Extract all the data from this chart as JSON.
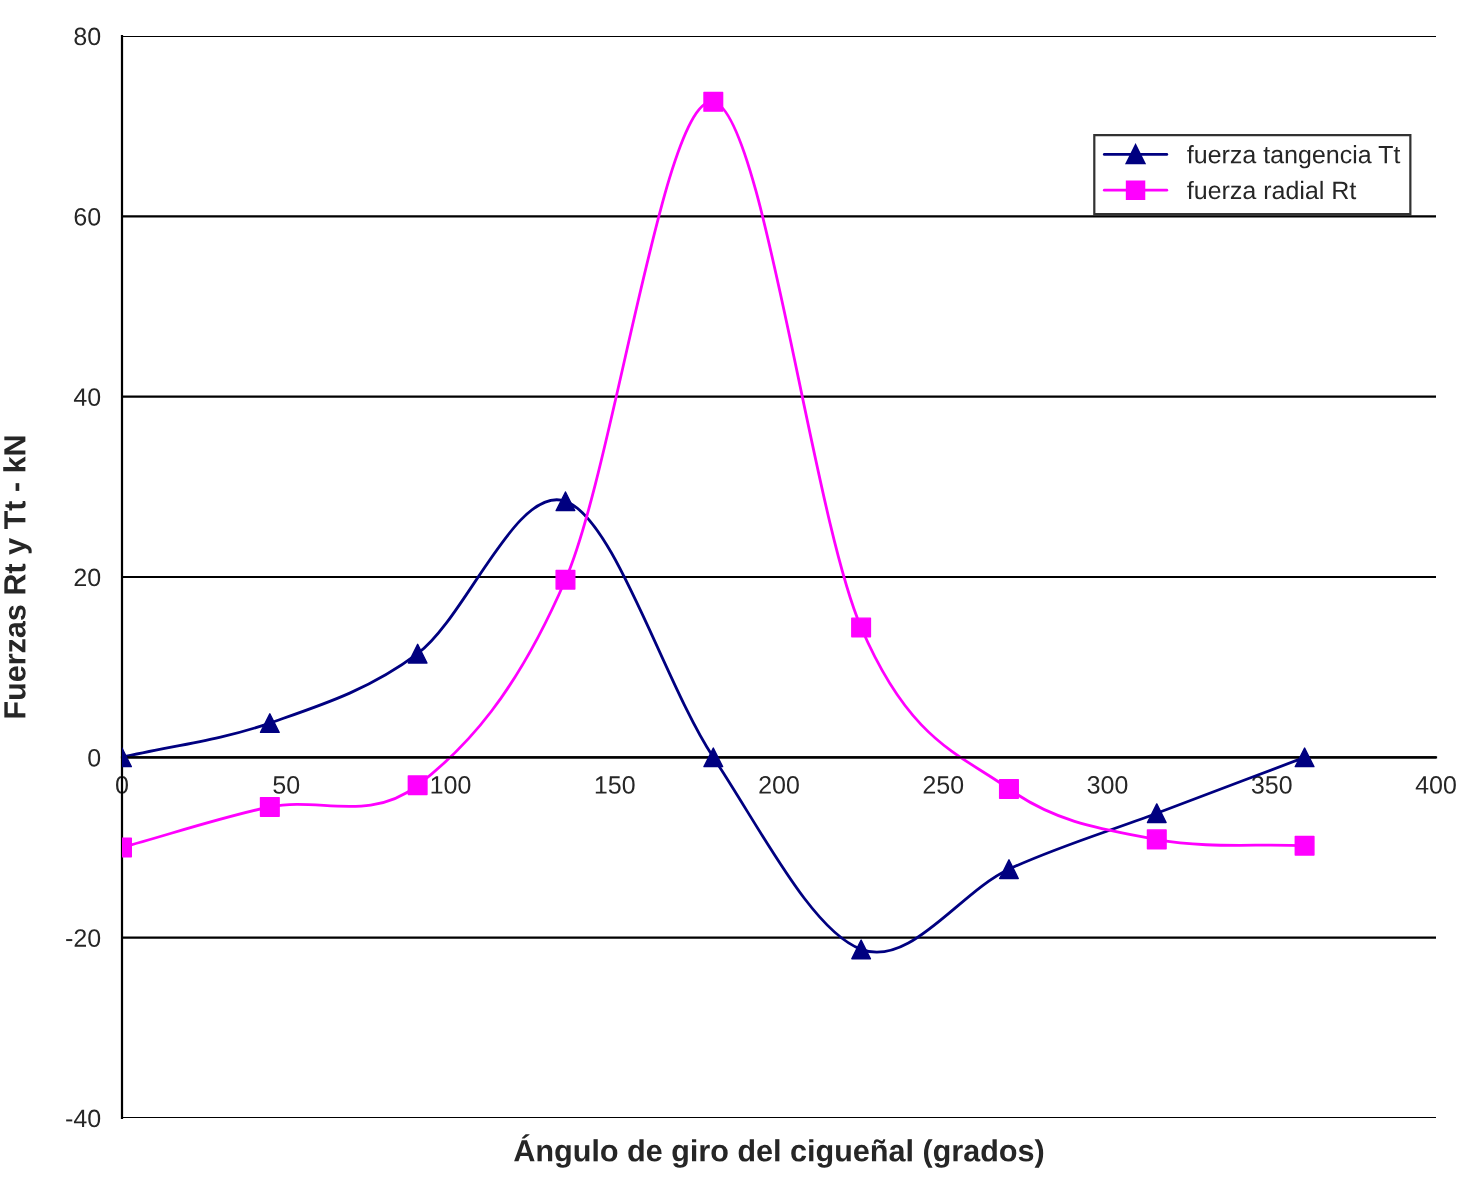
{
  "chart_data": {
    "type": "line",
    "xlabel": "Ángulo de giro del cigueñal (grados)",
    "ylabel": "Fuerzas Rt y Tt - kN",
    "x": [
      0,
      45,
      90,
      135,
      180,
      225,
      270,
      315,
      360
    ],
    "series": [
      {
        "name": "fuerza tangencia Tt",
        "color": "#000080",
        "marker": "triangle",
        "values": [
          0,
          3.8,
          11.5,
          28.4,
          0,
          -21.3,
          -12.4,
          -6.2,
          0
        ]
      },
      {
        "name": "fuerza radial Rt",
        "color": "#ff00ff",
        "marker": "square",
        "values": [
          -10,
          -5.5,
          -3.1,
          19.7,
          72.7,
          14.4,
          -3.5,
          -9.1,
          -9.8
        ]
      }
    ],
    "xlim": [
      0,
      400
    ],
    "xticks": [
      0,
      50,
      100,
      150,
      200,
      250,
      300,
      350,
      400
    ],
    "ylim": [
      -40,
      80
    ],
    "yticks": [
      -40,
      -20,
      0,
      20,
      40,
      60,
      80
    ],
    "grid": "y",
    "legend": "top right",
    "line_style": "solid"
  }
}
